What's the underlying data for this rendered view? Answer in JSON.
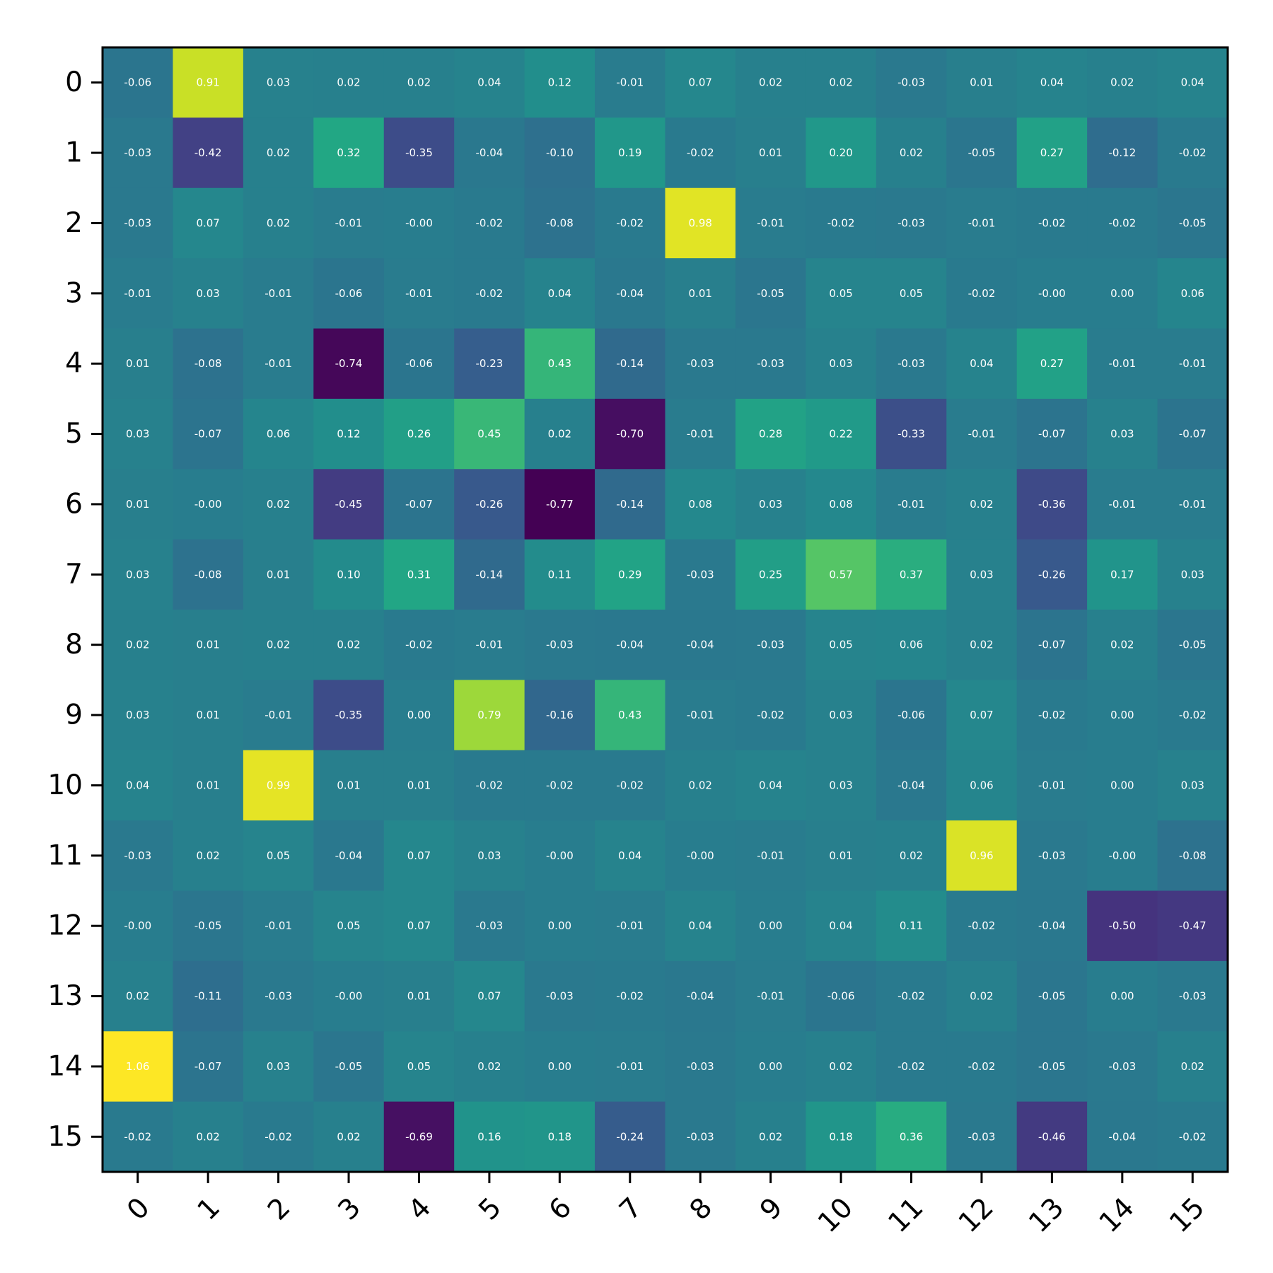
{
  "chart_data": {
    "type": "heatmap",
    "title": "",
    "xlabel": "",
    "ylabel": "",
    "x_labels": [
      "0",
      "1",
      "2",
      "3",
      "4",
      "5",
      "6",
      "7",
      "8",
      "9",
      "10",
      "11",
      "12",
      "13",
      "14",
      "15"
    ],
    "y_labels": [
      "0",
      "1",
      "2",
      "3",
      "4",
      "5",
      "6",
      "7",
      "8",
      "9",
      "10",
      "11",
      "12",
      "13",
      "14",
      "15"
    ],
    "color_scale": "viridis",
    "value_range": [
      -0.77,
      1.06
    ],
    "cell_values": [
      [
        "-0.06",
        "0.91",
        "0.03",
        "0.02",
        "0.02",
        "0.04",
        "0.12",
        "-0.01",
        "0.07",
        "0.02",
        "0.02",
        "-0.03",
        "0.01",
        "0.04",
        "0.02",
        "0.04"
      ],
      [
        "-0.03",
        "-0.42",
        "0.02",
        "0.32",
        "-0.35",
        "-0.04",
        "-0.10",
        "0.19",
        "-0.02",
        "0.01",
        "0.20",
        "0.02",
        "-0.05",
        "0.27",
        "-0.12",
        "-0.02"
      ],
      [
        "-0.03",
        "0.07",
        "0.02",
        "-0.01",
        "-0.00",
        "-0.02",
        "-0.08",
        "-0.02",
        "0.98",
        "-0.01",
        "-0.02",
        "-0.03",
        "-0.01",
        "-0.02",
        "-0.02",
        "-0.05"
      ],
      [
        "-0.01",
        "0.03",
        "-0.01",
        "-0.06",
        "-0.01",
        "-0.02",
        "0.04",
        "-0.04",
        "0.01",
        "-0.05",
        "0.05",
        "0.05",
        "-0.02",
        "-0.00",
        "0.00",
        "0.06"
      ],
      [
        "0.01",
        "-0.08",
        "-0.01",
        "-0.74",
        "-0.06",
        "-0.23",
        "0.43",
        "-0.14",
        "-0.03",
        "-0.03",
        "0.03",
        "-0.03",
        "0.04",
        "0.27",
        "-0.01",
        "-0.01"
      ],
      [
        "0.03",
        "-0.07",
        "0.06",
        "0.12",
        "0.26",
        "0.45",
        "0.02",
        "-0.70",
        "-0.01",
        "0.28",
        "0.22",
        "-0.33",
        "-0.01",
        "-0.07",
        "0.03",
        "-0.07"
      ],
      [
        "0.01",
        "-0.00",
        "0.02",
        "-0.45",
        "-0.07",
        "-0.26",
        "-0.77",
        "-0.14",
        "0.08",
        "0.03",
        "0.08",
        "-0.01",
        "0.02",
        "-0.36",
        "-0.01",
        "-0.01"
      ],
      [
        "0.03",
        "-0.08",
        "0.01",
        "0.10",
        "0.31",
        "-0.14",
        "0.11",
        "0.29",
        "-0.03",
        "0.25",
        "0.57",
        "0.37",
        "0.03",
        "-0.26",
        "0.17",
        "0.03"
      ],
      [
        "0.02",
        "0.01",
        "0.02",
        "0.02",
        "-0.02",
        "-0.01",
        "-0.03",
        "-0.04",
        "-0.04",
        "-0.03",
        "0.05",
        "0.06",
        "0.02",
        "-0.07",
        "0.02",
        "-0.05"
      ],
      [
        "0.03",
        "0.01",
        "-0.01",
        "-0.35",
        "0.00",
        "0.79",
        "-0.16",
        "0.43",
        "-0.01",
        "-0.02",
        "0.03",
        "-0.06",
        "0.07",
        "-0.02",
        "0.00",
        "-0.02"
      ],
      [
        "0.04",
        "0.01",
        "0.99",
        "0.01",
        "0.01",
        "-0.02",
        "-0.02",
        "-0.02",
        "0.02",
        "0.04",
        "0.03",
        "-0.04",
        "0.06",
        "-0.01",
        "0.00",
        "0.03"
      ],
      [
        "-0.03",
        "0.02",
        "0.05",
        "-0.04",
        "0.07",
        "0.03",
        "-0.00",
        "0.04",
        "-0.00",
        "-0.01",
        "0.01",
        "0.02",
        "0.96",
        "-0.03",
        "-0.00",
        "-0.08"
      ],
      [
        "-0.00",
        "-0.05",
        "-0.01",
        "0.05",
        "0.07",
        "-0.03",
        "0.00",
        "-0.01",
        "0.04",
        "0.00",
        "0.04",
        "0.11",
        "-0.02",
        "-0.04",
        "-0.50",
        "-0.47"
      ],
      [
        "0.02",
        "-0.11",
        "-0.03",
        "-0.00",
        "0.01",
        "0.07",
        "-0.03",
        "-0.02",
        "-0.04",
        "-0.01",
        "-0.06",
        "-0.02",
        "0.02",
        "-0.05",
        "0.00",
        "-0.03"
      ],
      [
        "1.06",
        "-0.07",
        "0.03",
        "-0.05",
        "0.05",
        "0.02",
        "0.00",
        "-0.01",
        "-0.03",
        "0.00",
        "0.02",
        "-0.02",
        "-0.02",
        "-0.05",
        "-0.03",
        "0.02"
      ],
      [
        "-0.02",
        "0.02",
        "-0.02",
        "0.02",
        "-0.69",
        "0.16",
        "0.18",
        "-0.24",
        "-0.03",
        "0.02",
        "0.18",
        "0.36",
        "-0.03",
        "-0.46",
        "-0.04",
        "-0.02"
      ]
    ],
    "grid": false,
    "legend": "none"
  }
}
